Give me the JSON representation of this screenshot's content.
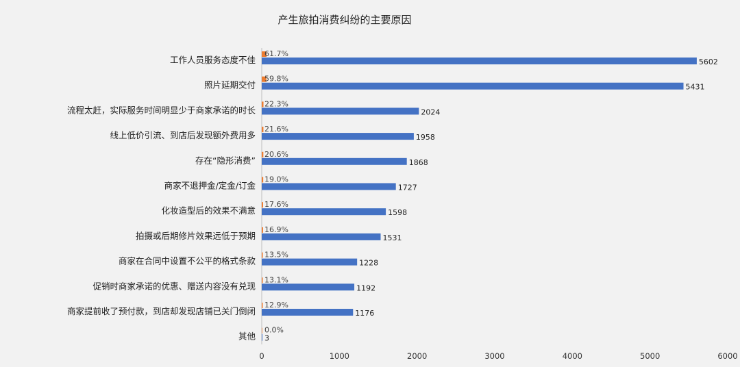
{
  "chart_data": {
    "type": "bar",
    "orientation": "horizontal",
    "title": "产生旅拍消费纠纷的主要原因",
    "categories": [
      "工作人员服务态度不佳",
      "照片延期交付",
      "流程太赶，实际服务时间明显少于商家承诺的时长",
      "线上低价引流、到店后发现额外费用多",
      "存在“隐形消费”",
      "商家不退押金/定金/订金",
      "化妆造型后的效果不满意",
      "拍摄或后期修片效果远低于预期",
      "商家在合同中设置不公平的格式条款",
      "促销时商家承诺的优惠、赠送内容没有兑现",
      "商家提前收了预付款，到店却发现店铺已关门倒闭",
      "其他"
    ],
    "series": [
      {
        "values": [
          5602,
          5431,
          2024,
          1958,
          1868,
          1727,
          1598,
          1531,
          1228,
          1192,
          1176,
          3
        ],
        "color": "#4472c4"
      },
      {
        "values": [
          61.7,
          59.8,
          22.3,
          21.6,
          20.6,
          19.0,
          17.6,
          16.9,
          13.5,
          13.1,
          12.9,
          0.0
        ],
        "labels": [
          "61.7%",
          "59.8%",
          "22.3%",
          "21.6%",
          "20.6%",
          "19.0%",
          "17.6%",
          "16.9%",
          "13.5%",
          "13.1%",
          "12.9%",
          "0.0%"
        ],
        "color": "#ed7d31"
      }
    ],
    "x_ticks": [
      "0",
      "1000",
      "2000",
      "3000",
      "4000",
      "5000",
      "6000"
    ],
    "xlim": [
      0,
      6000
    ],
    "grid": false,
    "legend": "none"
  }
}
